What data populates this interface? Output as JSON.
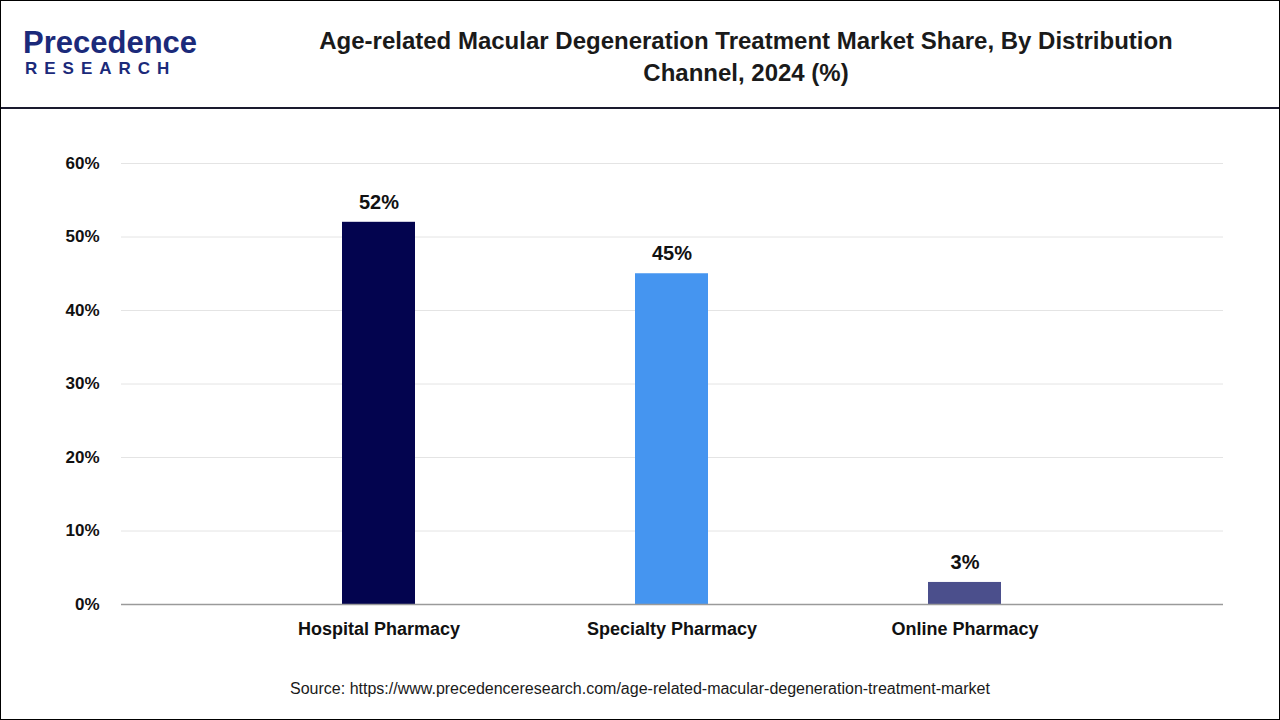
{
  "chart_data": {
    "type": "bar",
    "title": "Age-related Macular Degeneration Treatment Market Share, By Distribution Channel, 2024 (%)",
    "categories": [
      "Hospital Pharmacy",
      "Specialty Pharmacy",
      "Online Pharmacy"
    ],
    "values": [
      52,
      45,
      3
    ],
    "value_labels": [
      "52%",
      "45%",
      "3%"
    ],
    "colors": [
      "#03044f",
      "#4595f0",
      "#4b4f8c"
    ],
    "ylim": [
      0,
      60
    ],
    "yticks": [
      {
        "value": 0,
        "label": "0%"
      },
      {
        "value": 10,
        "label": "10%"
      },
      {
        "value": 20,
        "label": "20%"
      },
      {
        "value": 30,
        "label": "30%"
      },
      {
        "value": 40,
        "label": "40%"
      },
      {
        "value": 50,
        "label": "50%"
      },
      {
        "value": 60,
        "label": "60%"
      }
    ],
    "grid": true,
    "data_labels": true,
    "annotations": [
      "Precedence",
      "RESEARCH"
    ],
    "caption": "Source: https://www.precedenceresearch.com/age-related-macular-degeneration-treatment-market"
  }
}
